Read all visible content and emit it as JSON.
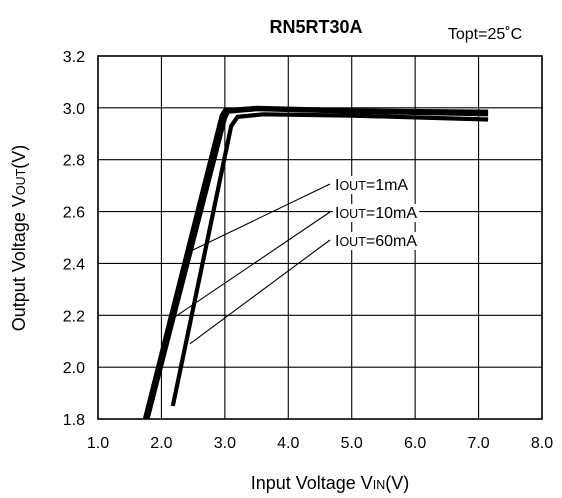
{
  "chart_data": {
    "type": "line",
    "title": "RN5RT30A",
    "condition": "Topt=25˚C",
    "xlabel": {
      "pre": "Input Voltage V",
      "sub": "IN",
      "post": "(V)"
    },
    "ylabel": {
      "pre": "Output Voltage V",
      "sub": "OUT",
      "post": "(V)"
    },
    "xlim": [
      1.0,
      8.0
    ],
    "ylim": [
      1.8,
      3.2
    ],
    "xticks": [
      "1.0",
      "2.0",
      "3.0",
      "4.0",
      "5.0",
      "6.0",
      "7.0",
      "8.0"
    ],
    "yticks": [
      "1.8",
      "2.0",
      "2.2",
      "2.4",
      "2.6",
      "2.8",
      "3.0",
      "3.2"
    ],
    "grid": true,
    "series": [
      {
        "label": {
          "pre": "I",
          "sub": "OUT",
          "post": "=1mA"
        },
        "x": [
          1.74,
          2.95,
          3.0,
          3.5,
          5.0,
          7.15
        ],
        "y": [
          1.8,
          2.97,
          2.99,
          3.0,
          2.99,
          2.985
        ],
        "anchor": [
          2.48,
          2.45
        ]
      },
      {
        "label": {
          "pre": "I",
          "sub": "OUT",
          "post": "=10mA"
        },
        "x": [
          1.78,
          3.0,
          3.05,
          3.5,
          5.0,
          7.15
        ],
        "y": [
          1.8,
          2.96,
          2.985,
          2.995,
          2.985,
          2.975
        ],
        "anchor": [
          2.13,
          2.18
        ]
      },
      {
        "label": {
          "pre": "I",
          "sub": "OUT",
          "post": "=60mA"
        },
        "x": [
          2.18,
          3.1,
          3.2,
          3.6,
          5.0,
          7.15
        ],
        "y": [
          1.85,
          2.93,
          2.965,
          2.975,
          2.97,
          2.955
        ],
        "anchor": [
          2.45,
          2.09
        ]
      }
    ]
  }
}
